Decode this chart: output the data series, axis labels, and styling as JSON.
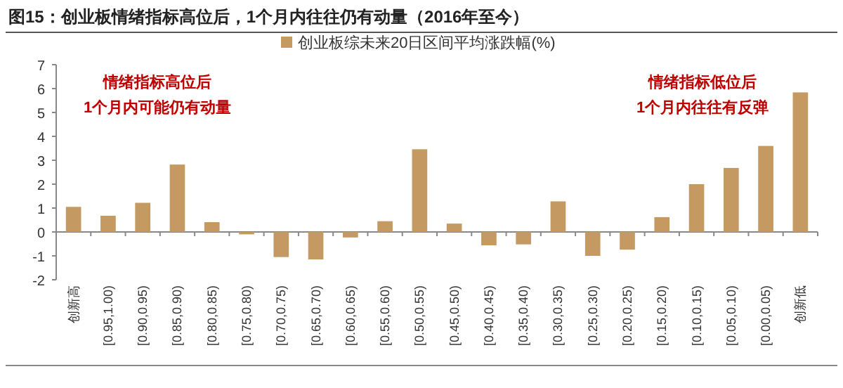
{
  "chart_data": {
    "type": "bar",
    "title": "图15：创业板情绪指标高位后，1个月内往往仍有动量（2016年至今）",
    "categories": [
      "创新高",
      "[0.95,1.00)",
      "[0.90,0.95)",
      "[0.85,0.90)",
      "[0.80,0.85)",
      "[0.75,0.80)",
      "[0.70,0.75)",
      "[0.65,0.70)",
      "[0.60,0.65)",
      "[0.55,0.60)",
      "[0.50,0.55)",
      "[0.45,0.50)",
      "[0.40,0.45)",
      "[0.35,0.40)",
      "[0.30,0.35)",
      "[0.25,0.30)",
      "[0.20,0.25)",
      "[0.15,0.20)",
      "[0.10,0.15)",
      "[0.05,0.10)",
      "[0.00,0.05)",
      "创新低"
    ],
    "series": [
      {
        "name": "创业板综未来20日区间平均涨跌幅(%)",
        "color": "#c49a62",
        "values": [
          1.05,
          0.68,
          1.22,
          2.82,
          0.41,
          -0.1,
          -1.05,
          -1.15,
          -0.23,
          0.45,
          3.46,
          0.35,
          -0.56,
          -0.52,
          1.28,
          -1.0,
          -0.74,
          0.62,
          2.0,
          2.68,
          3.6,
          5.84
        ]
      }
    ],
    "ylim": [
      -2,
      7
    ],
    "yticks": [
      -2,
      -1,
      0,
      1,
      2,
      3,
      4,
      5,
      6,
      7
    ],
    "annotations": [
      "情绪指标高位后",
      "1个月内可能仍有动量",
      "情绪指标低位后",
      "1个月内往往有反弹"
    ],
    "legend": "top"
  }
}
